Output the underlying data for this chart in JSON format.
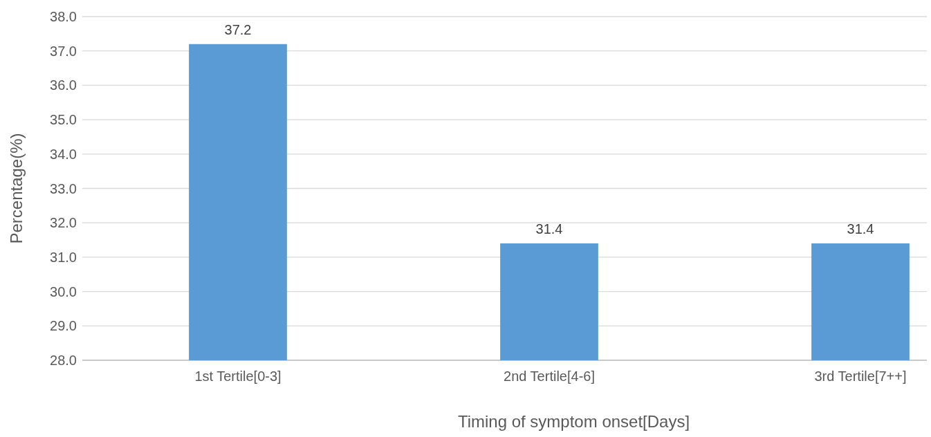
{
  "chart_data": {
    "type": "bar",
    "xlabel": "Timing of symptom onset[Days]",
    "ylabel": "Percentage(%)",
    "categories": [
      "1st Tertile[0-3]",
      "2nd Tertile[4-6]",
      "3rd Tertile[7++]"
    ],
    "values": [
      37.2,
      31.4,
      31.4
    ],
    "color": "#5b9bd5",
    "ylim": [
      28,
      38
    ],
    "yticks": [
      {
        "value": 28,
        "label": "28.0"
      },
      {
        "value": 29,
        "label": "29.0"
      },
      {
        "value": 30,
        "label": "30.0"
      },
      {
        "value": 31,
        "label": "31.0"
      },
      {
        "value": 32,
        "label": "32.0"
      },
      {
        "value": 33,
        "label": "33.0"
      },
      {
        "value": 34,
        "label": "34.0"
      },
      {
        "value": 35,
        "label": "35.0"
      },
      {
        "value": 36,
        "label": "36.0"
      },
      {
        "value": 37,
        "label": "37.0"
      },
      {
        "value": 38,
        "label": "38.0"
      }
    ],
    "grid": "y",
    "data_labels": true
  }
}
